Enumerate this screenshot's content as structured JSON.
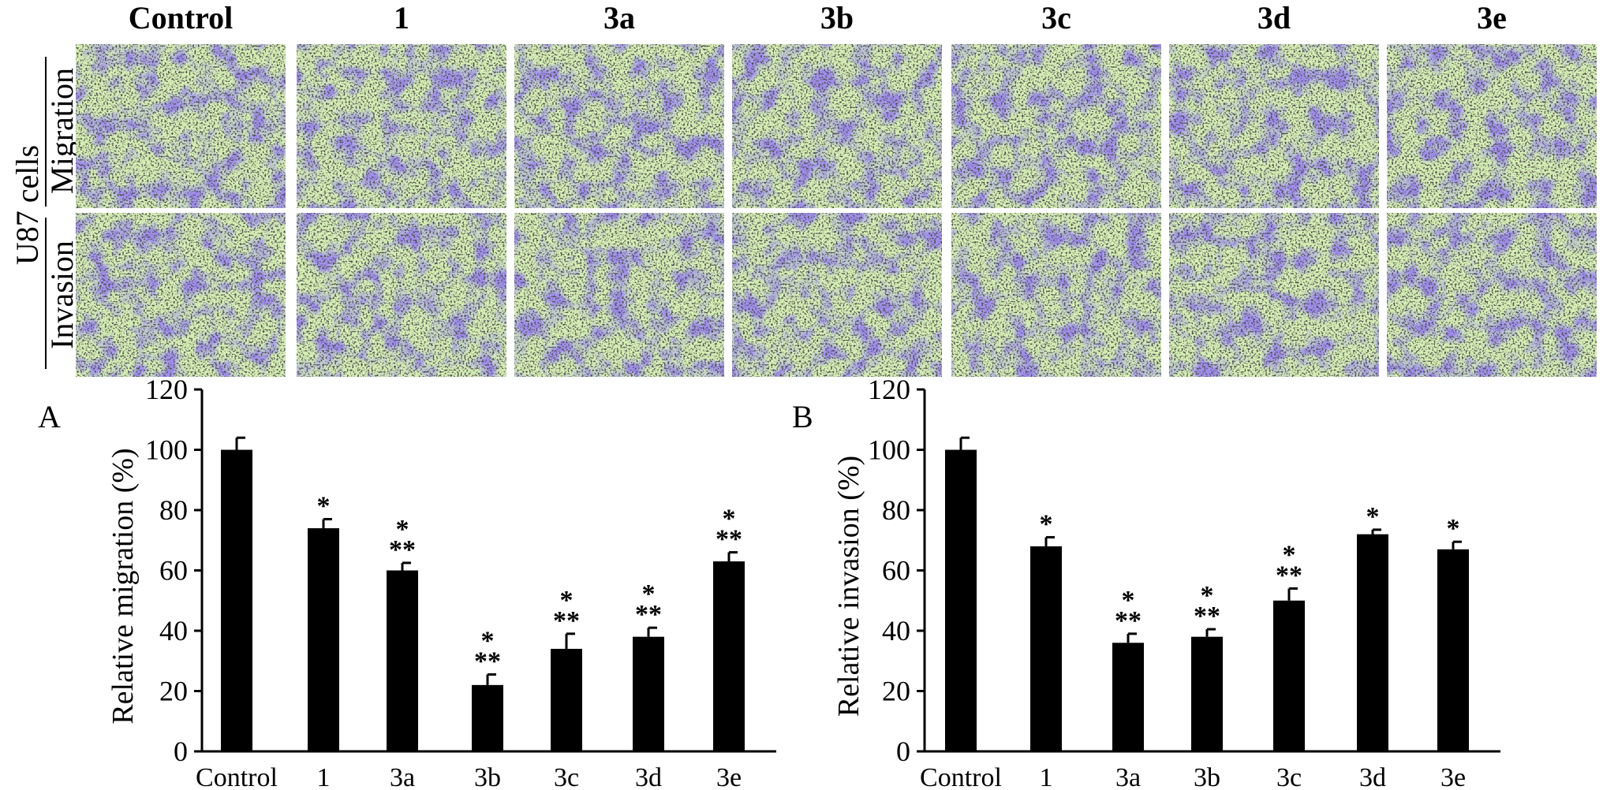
{
  "figure": {
    "cell_line_label": "U87 cells",
    "row_labels": [
      "Migration",
      "Invasion"
    ],
    "columns": [
      "Control",
      "1",
      "3a",
      "3b",
      "3c",
      "3d",
      "3e"
    ],
    "micrograph_colors": {
      "background": "#d7efb6",
      "stain": "#5a45d8",
      "debris": "#1a1a1a"
    }
  },
  "chart_data": [
    {
      "type": "bar",
      "panel": "A",
      "categories": [
        "Control",
        "1",
        "3a",
        "3b",
        "3c",
        "3d",
        "3e"
      ],
      "values": [
        100,
        74,
        60,
        22,
        34,
        38,
        63
      ],
      "errors": [
        4,
        3,
        2.5,
        3.5,
        5,
        3,
        3
      ],
      "significance": [
        "",
        "*",
        "*\n**",
        "*\n**",
        "*\n**",
        "*\n**",
        "*\n**"
      ],
      "ylabel": "Relative migration (%)",
      "xlabel": "",
      "ylim": [
        0,
        120
      ],
      "yticks": [
        "0",
        "20",
        "40",
        "60",
        "80",
        "100",
        "120"
      ],
      "bar_color": "#000000"
    },
    {
      "type": "bar",
      "panel": "B",
      "categories": [
        "Control",
        "1",
        "3a",
        "3b",
        "3c",
        "3d",
        "3e"
      ],
      "values": [
        100,
        68,
        36,
        38,
        50,
        72,
        67
      ],
      "errors": [
        4,
        3,
        3,
        2.5,
        4,
        1.5,
        2.5
      ],
      "significance": [
        "",
        "*",
        "*\n**",
        "*\n**",
        "*\n**",
        "*",
        "*"
      ],
      "ylabel": "Relative invasion (%)",
      "xlabel": "",
      "ylim": [
        0,
        120
      ],
      "yticks": [
        "0",
        "20",
        "40",
        "60",
        "80",
        "100",
        "120"
      ],
      "bar_color": "#000000"
    }
  ]
}
